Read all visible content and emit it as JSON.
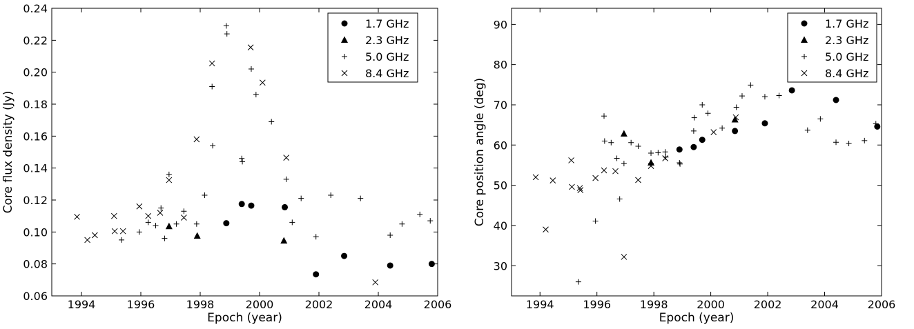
{
  "chart_data": [
    {
      "type": "scatter",
      "xlabel": "Epoch (year)",
      "ylabel": "Core flux density (Jy)",
      "xlim": [
        1993.0,
        2006.0
      ],
      "ylim": [
        0.06,
        0.24
      ],
      "xticks": [
        1994,
        1996,
        1998,
        2000,
        2002,
        2004,
        2006
      ],
      "yticks": [
        0.06,
        0.08,
        0.1,
        0.12,
        0.14,
        0.16,
        0.18,
        0.2,
        0.22,
        0.24
      ],
      "ytick_labels": [
        "0.06",
        "0.08",
        "0.10",
        "0.12",
        "0.14",
        "0.16",
        "0.18",
        "0.20",
        "0.22",
        "0.24"
      ],
      "xtick_labels": [
        "1994",
        "1996",
        "1998",
        "2000",
        "2002",
        "2004",
        "2006"
      ],
      "legend_position": "top-right",
      "series": [
        {
          "name": "1.7 GHz",
          "marker": "circle",
          "x": [
            1998.88,
            1999.4,
            1999.72,
            2000.85,
            2001.9,
            2002.85,
            2004.4,
            2005.8
          ],
          "y": [
            0.1055,
            0.1175,
            0.1165,
            0.1155,
            0.0735,
            0.085,
            0.079,
            0.08
          ]
        },
        {
          "name": "2.3 GHz",
          "marker": "triangle",
          "x": [
            1996.95,
            1997.9,
            2000.82
          ],
          "y": [
            0.1035,
            0.0975,
            0.0945
          ]
        },
        {
          "name": "5.0 GHz",
          "marker": "plus",
          "x": [
            1995.35,
            1995.95,
            1996.25,
            1996.5,
            1996.68,
            1996.8,
            1996.95,
            1997.2,
            1997.45,
            1997.88,
            1998.15,
            1998.4,
            1998.42,
            1998.88,
            1998.9,
            1999.4,
            1999.42,
            1999.72,
            1999.88,
            2000.4,
            2000.9,
            2001.1,
            2001.4,
            2001.9,
            2002.4,
            2003.4,
            2004.4,
            2004.8,
            2005.4,
            2005.75
          ],
          "y": [
            0.095,
            0.1,
            0.106,
            0.104,
            0.115,
            0.096,
            0.136,
            0.105,
            0.113,
            0.105,
            0.123,
            0.191,
            0.154,
            0.229,
            0.224,
            0.146,
            0.144,
            0.202,
            0.186,
            0.169,
            0.133,
            0.106,
            0.121,
            0.097,
            0.123,
            0.121,
            0.098,
            0.105,
            0.111,
            0.107
          ]
        },
        {
          "name": "8.4 GHz",
          "marker": "x",
          "x": [
            1993.85,
            1994.2,
            1994.45,
            1995.1,
            1995.12,
            1995.4,
            1995.95,
            1996.25,
            1996.65,
            1996.95,
            1997.45,
            1997.88,
            1998.4,
            1999.7,
            2000.1,
            2000.9,
            2003.9
          ],
          "y": [
            0.1095,
            0.095,
            0.098,
            0.11,
            0.1005,
            0.1005,
            0.116,
            0.11,
            0.112,
            0.1325,
            0.109,
            0.158,
            0.2055,
            0.2155,
            0.1935,
            0.1465,
            0.0685
          ]
        }
      ]
    },
    {
      "type": "scatter",
      "xlabel": "Epoch (year)",
      "ylabel": "Core position angle (deg)",
      "xlim": [
        1993.0,
        2006.0
      ],
      "ylim": [
        22.5,
        94.0
      ],
      "xticks": [
        1994,
        1996,
        1998,
        2000,
        2002,
        2004,
        2006
      ],
      "yticks": [
        30,
        40,
        50,
        60,
        70,
        80,
        90
      ],
      "ytick_labels": [
        "30",
        "40",
        "50",
        "60",
        "70",
        "80",
        "90"
      ],
      "xtick_labels": [
        "1994",
        "1996",
        "1998",
        "2000",
        "2002",
        "2004",
        "2006"
      ],
      "legend_position": "top-right",
      "series": [
        {
          "name": "1.7 GHz",
          "marker": "circle",
          "x": [
            1998.9,
            1999.4,
            1999.7,
            2000.85,
            2001.9,
            2002.85,
            2004.4,
            2005.85
          ],
          "y": [
            58.9,
            59.5,
            61.3,
            63.5,
            65.4,
            73.6,
            71.2,
            64.6
          ]
        },
        {
          "name": "2.3 GHz",
          "marker": "triangle",
          "x": [
            1996.95,
            1997.9,
            2000.85
          ],
          "y": [
            62.8,
            55.6,
            66.3
          ]
        },
        {
          "name": "5.0 GHz",
          "marker": "plus",
          "x": [
            1995.35,
            1995.95,
            1996.25,
            1996.27,
            1996.5,
            1996.7,
            1996.8,
            1996.95,
            1997.2,
            1997.45,
            1997.9,
            1998.15,
            1998.4,
            1998.42,
            1998.9,
            1998.92,
            1999.4,
            1999.42,
            1999.7,
            1999.9,
            2000.4,
            2000.9,
            2001.1,
            2001.4,
            2001.9,
            2002.4,
            2003.4,
            2003.85,
            2004.4,
            2004.85,
            2005.4,
            2005.8
          ],
          "y": [
            26.0,
            41.1,
            67.2,
            61.0,
            60.6,
            56.7,
            46.6,
            55.4,
            60.6,
            59.7,
            58.0,
            58.1,
            58.3,
            57.0,
            55.6,
            55.3,
            63.5,
            66.8,
            70.0,
            67.9,
            64.2,
            69.4,
            72.2,
            74.9,
            72.0,
            72.3,
            63.7,
            66.5,
            60.7,
            60.4,
            61.1,
            65.3
          ]
        },
        {
          "name": "8.4 GHz",
          "marker": "x",
          "x": [
            1993.85,
            1994.2,
            1994.45,
            1995.1,
            1995.12,
            1995.4,
            1995.42,
            1995.95,
            1996.25,
            1996.65,
            1996.95,
            1997.45,
            1997.9,
            1998.4,
            2000.1,
            2000.88
          ],
          "y": [
            52.0,
            39.0,
            51.2,
            56.2,
            49.6,
            49.3,
            48.8,
            51.8,
            53.7,
            53.5,
            32.2,
            51.3,
            54.8,
            56.7,
            63.2,
            66.9
          ]
        }
      ]
    }
  ]
}
